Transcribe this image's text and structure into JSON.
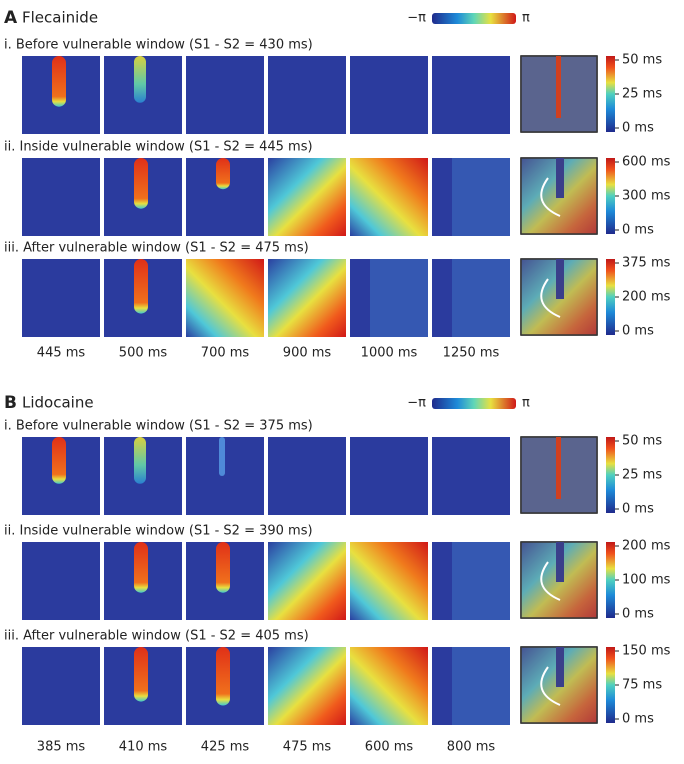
{
  "panels": [
    {
      "label": "A",
      "drug": "Flecainide",
      "phase_min": "−π",
      "phase_max": "π",
      "rows": [
        {
          "title": "i. Before vulnerable window (S1 - S2 = 430 ms)",
          "colorbar_ticks": [
            "50 ms",
            "25 ms",
            "0 ms"
          ]
        },
        {
          "title": "ii. Inside vulnerable window (S1 - S2 = 445 ms)",
          "colorbar_ticks": [
            "600 ms",
            "300 ms",
            "0 ms"
          ]
        },
        {
          "title": "iii. After vulnerable window (S1 - S2 = 475 ms)",
          "colorbar_ticks": [
            "375 ms",
            "200 ms",
            "0 ms"
          ]
        }
      ],
      "times": [
        "445 ms",
        "500 ms",
        "700 ms",
        "900 ms",
        "1000 ms",
        "1250 ms"
      ]
    },
    {
      "label": "B",
      "drug": "Lidocaine",
      "phase_min": "−π",
      "phase_max": "π",
      "rows": [
        {
          "title": "i. Before vulnerable window (S1 - S2 = 375 ms)",
          "colorbar_ticks": [
            "50 ms",
            "25 ms",
            "0 ms"
          ]
        },
        {
          "title": "ii. Inside vulnerable window (S1 - S2 = 390 ms)",
          "colorbar_ticks": [
            "200 ms",
            "100 ms",
            "0 ms"
          ]
        },
        {
          "title": "iii. After vulnerable window (S1 - S2 = 405 ms)",
          "colorbar_ticks": [
            "150 ms",
            "75 ms",
            "0 ms"
          ]
        }
      ],
      "times": [
        "385 ms",
        "410 ms",
        "425 ms",
        "475 ms",
        "600 ms",
        "800 ms"
      ]
    }
  ]
}
